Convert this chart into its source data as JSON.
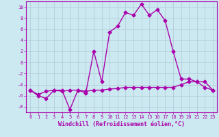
{
  "xlabel": "Windchill (Refroidissement éolien,°C)",
  "xlim": [
    -0.5,
    23.5
  ],
  "ylim": [
    -9,
    11
  ],
  "yticks": [
    -8,
    -6,
    -4,
    -2,
    0,
    2,
    4,
    6,
    8,
    10
  ],
  "xticks": [
    0,
    1,
    2,
    3,
    4,
    5,
    6,
    7,
    8,
    9,
    10,
    11,
    12,
    13,
    14,
    15,
    16,
    17,
    18,
    19,
    20,
    21,
    22,
    23
  ],
  "bg_color": "#cce8f0",
  "grid_color": "#b0c8d8",
  "line_color": "#aa00aa",
  "line1_x": [
    0,
    1,
    2,
    3,
    4,
    5,
    6,
    7,
    8,
    9,
    10,
    11,
    12,
    13,
    14,
    15,
    16,
    17,
    18,
    19,
    20,
    21,
    22,
    23
  ],
  "line1_y": [
    -5,
    -6,
    -6.5,
    -5,
    -5,
    -8.5,
    -5,
    -5.5,
    2,
    -3.5,
    5.5,
    6.5,
    9,
    8.5,
    10.5,
    8.5,
    9.5,
    7.5,
    2,
    -3,
    -3,
    -3.5,
    -3.5,
    -5
  ],
  "line2_x": [
    0,
    1,
    2,
    3,
    4,
    5,
    6,
    7,
    8,
    9,
    10,
    11,
    12,
    13,
    14,
    15,
    16,
    17,
    18,
    19,
    20,
    21,
    22,
    23
  ],
  "line2_y": [
    -5,
    -5.8,
    -5.2,
    -5.0,
    -5.2,
    -5.0,
    -5.0,
    -5.2,
    -5.0,
    -5.0,
    -4.8,
    -4.7,
    -4.5,
    -4.5,
    -4.5,
    -4.5,
    -4.5,
    -4.5,
    -4.5,
    -4.0,
    -3.5,
    -3.5,
    -4.5,
    -5
  ],
  "marker": "D",
  "markersize": 2.5,
  "linewidth": 1.0,
  "xlabel_fontsize": 6,
  "tick_fontsize": 5
}
